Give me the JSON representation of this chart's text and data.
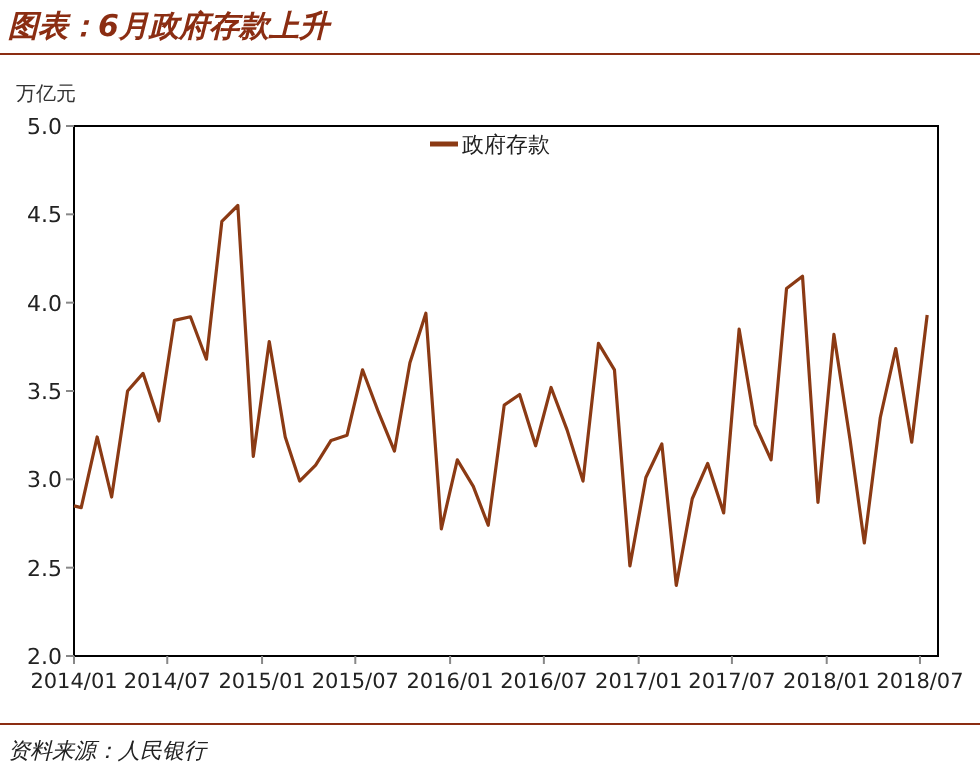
{
  "chart_data": {
    "type": "line",
    "title": "图表：6月政府存款上升",
    "ylabel": "万亿元",
    "legend": "top",
    "annotations": [
      "资料来源：人民银行"
    ],
    "xlim": [
      "2014-01-01",
      "2018-08-05"
    ],
    "xticks": [
      {
        "value": "2014-01",
        "label": "2014/01"
      },
      {
        "value": "2014-07",
        "label": "2014/07"
      },
      {
        "value": "2015-01",
        "label": "2015/01"
      },
      {
        "value": "2015-07",
        "label": "2015/07"
      },
      {
        "value": "2016-01",
        "label": "2016/01"
      },
      {
        "value": "2016-07",
        "label": "2016/07"
      },
      {
        "value": "2017-01",
        "label": "2017/01"
      },
      {
        "value": "2017-07",
        "label": "2017/07"
      },
      {
        "value": "2018-01",
        "label": "2018/01"
      },
      {
        "value": "2018-07",
        "label": "2018/07"
      }
    ],
    "ylim": [
      2,
      5
    ],
    "yticks": [
      {
        "value": 2,
        "label": "2.0"
      },
      {
        "value": 2.5,
        "label": "2.5"
      },
      {
        "value": 3,
        "label": "3.0"
      },
      {
        "value": 3.5,
        "label": "3.5"
      },
      {
        "value": 4,
        "label": "4.0"
      },
      {
        "value": 4.5,
        "label": "4.5"
      },
      {
        "value": 5,
        "label": "5.0"
      }
    ],
    "x": [
      "2014-01-01",
      "2014-01-15",
      "2014-02-15",
      "2014-03-15",
      "2014-04-15",
      "2014-05-15",
      "2014-06-15",
      "2014-07-15",
      "2014-08-15",
      "2014-09-15",
      "2014-10-15",
      "2014-11-15",
      "2014-12-15",
      "2015-01-15",
      "2015-02-15",
      "2015-03-15",
      "2015-04-15",
      "2015-05-15",
      "2015-06-15",
      "2015-07-15",
      "2015-08-15",
      "2015-09-15",
      "2015-10-15",
      "2015-11-15",
      "2015-12-15",
      "2016-01-15",
      "2016-02-15",
      "2016-03-15",
      "2016-04-15",
      "2016-05-15",
      "2016-06-15",
      "2016-07-15",
      "2016-08-15",
      "2016-09-15",
      "2016-10-15",
      "2016-11-15",
      "2016-12-15",
      "2017-01-15",
      "2017-02-15",
      "2017-03-15",
      "2017-04-15",
      "2017-05-15",
      "2017-06-15",
      "2017-07-15",
      "2017-08-15",
      "2017-09-15",
      "2017-10-15",
      "2017-11-15",
      "2017-12-15",
      "2018-01-15",
      "2018-02-15",
      "2018-03-15",
      "2018-04-15",
      "2018-05-15",
      "2018-06-15",
      "2018-07-15"
    ],
    "series": [
      {
        "name": "政府存款",
        "color": "#8b3a14",
        "values": [
          2.85,
          2.84,
          3.24,
          2.9,
          3.5,
          3.6,
          3.33,
          3.9,
          3.92,
          3.68,
          4.46,
          4.55,
          3.13,
          3.78,
          3.24,
          2.99,
          3.08,
          3.22,
          3.25,
          3.62,
          3.38,
          3.16,
          3.66,
          3.94,
          2.72,
          3.11,
          2.96,
          2.74,
          3.42,
          3.48,
          3.19,
          3.52,
          3.28,
          2.99,
          3.77,
          3.62,
          2.51,
          3.01,
          3.2,
          2.4,
          2.89,
          3.09,
          2.81,
          3.85,
          3.31,
          3.11,
          4.08,
          4.15,
          2.87,
          3.82,
          3.23,
          2.64,
          3.35,
          3.74,
          3.21,
          3.93
        ]
      }
    ]
  }
}
